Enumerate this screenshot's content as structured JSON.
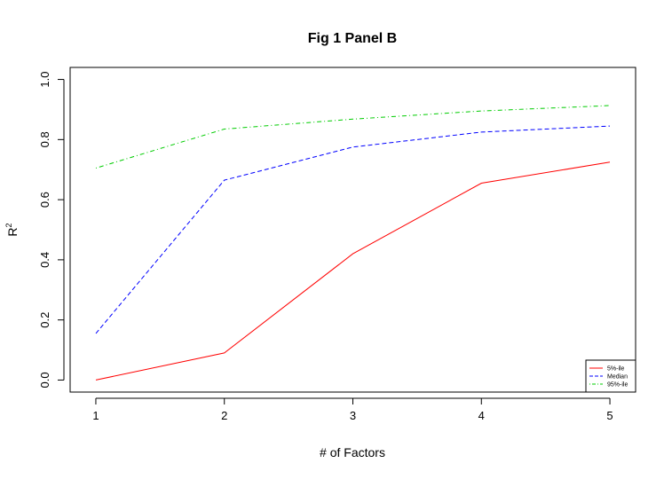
{
  "chart_data": {
    "type": "line",
    "title": "Fig 1 Panel B",
    "xlabel": "# of Factors",
    "ylabel": "R",
    "ylabel_superscript": "2",
    "x": [
      1,
      2,
      3,
      4,
      5
    ],
    "xlim": [
      0.8,
      5.2
    ],
    "ylim": [
      -0.04,
      1.04
    ],
    "xticks": [
      "1",
      "2",
      "3",
      "4",
      "5"
    ],
    "yticks": [
      "0.0",
      "0.2",
      "0.4",
      "0.6",
      "0.8",
      "1.0"
    ],
    "grid": false,
    "legend_position": "bottom-right",
    "series": [
      {
        "name": "5%-ile",
        "values": [
          0.0,
          0.09,
          0.42,
          0.655,
          0.725
        ],
        "color": "#ff0000",
        "dash": "solid"
      },
      {
        "name": "Median",
        "values": [
          0.155,
          0.665,
          0.775,
          0.825,
          0.845
        ],
        "color": "#0000ff",
        "dash": "dashed"
      },
      {
        "name": "95%-ile",
        "values": [
          0.705,
          0.835,
          0.868,
          0.895,
          0.913
        ],
        "color": "#00cc00",
        "dash": "dotdash"
      }
    ]
  }
}
